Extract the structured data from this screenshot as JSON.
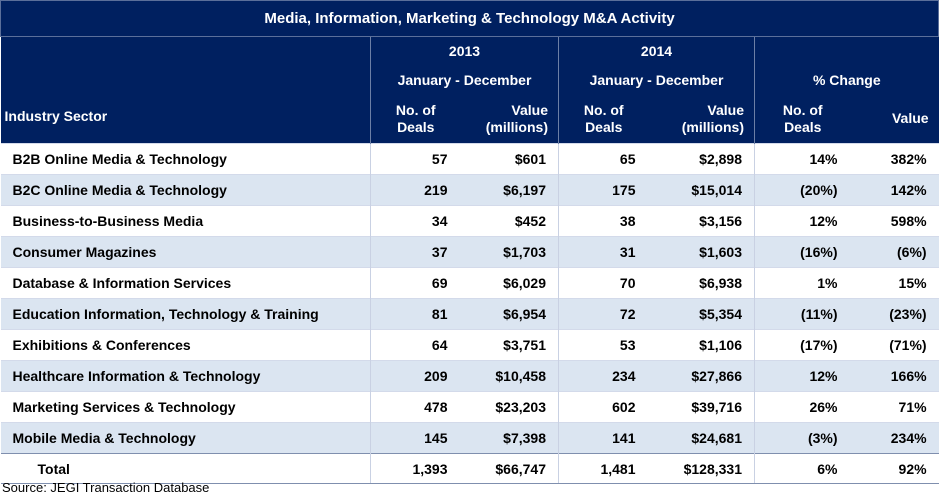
{
  "title": "Media, Information, Marketing & Technology M&A Activity",
  "header": {
    "year_2013": "2013",
    "year_2014": "2014",
    "period_2013": "January - December",
    "period_2014": "January - December",
    "pct_change": "% Change",
    "sector_label": "Industry Sector",
    "deals_l1": "No. of",
    "deals_l2": "Deals",
    "value_l1": "Value",
    "value_l2": "(millions)",
    "pct_value": "Value"
  },
  "rows": [
    {
      "sector": "B2B Online Media & Technology",
      "deals_2013": "57",
      "value_2013": "$601",
      "deals_2014": "65",
      "value_2014": "$2,898",
      "pct_deals": "14%",
      "pct_value": "382%"
    },
    {
      "sector": "B2C Online Media & Technology",
      "deals_2013": "219",
      "value_2013": "$6,197",
      "deals_2014": "175",
      "value_2014": "$15,014",
      "pct_deals": "(20%)",
      "pct_value": "142%"
    },
    {
      "sector": "Business-to-Business Media",
      "deals_2013": "34",
      "value_2013": "$452",
      "deals_2014": "38",
      "value_2014": "$3,156",
      "pct_deals": "12%",
      "pct_value": "598%"
    },
    {
      "sector": "Consumer Magazines",
      "deals_2013": "37",
      "value_2013": "$1,703",
      "deals_2014": "31",
      "value_2014": "$1,603",
      "pct_deals": "(16%)",
      "pct_value": "(6%)"
    },
    {
      "sector": "Database & Information Services",
      "deals_2013": "69",
      "value_2013": "$6,029",
      "deals_2014": "70",
      "value_2014": "$6,938",
      "pct_deals": "1%",
      "pct_value": "15%"
    },
    {
      "sector": "Education Information, Technology & Training",
      "deals_2013": "81",
      "value_2013": "$6,954",
      "deals_2014": "72",
      "value_2014": "$5,354",
      "pct_deals": "(11%)",
      "pct_value": "(23%)"
    },
    {
      "sector": "Exhibitions & Conferences",
      "deals_2013": "64",
      "value_2013": "$3,751",
      "deals_2014": "53",
      "value_2014": "$1,106",
      "pct_deals": "(17%)",
      "pct_value": "(71%)"
    },
    {
      "sector": "Healthcare Information & Technology",
      "deals_2013": "209",
      "value_2013": "$10,458",
      "deals_2014": "234",
      "value_2014": "$27,866",
      "pct_deals": "12%",
      "pct_value": "166%"
    },
    {
      "sector": "Marketing Services & Technology",
      "deals_2013": "478",
      "value_2013": "$23,203",
      "deals_2014": "602",
      "value_2014": "$39,716",
      "pct_deals": "26%",
      "pct_value": "71%"
    },
    {
      "sector": "Mobile Media & Technology",
      "deals_2013": "145",
      "value_2013": "$7,398",
      "deals_2014": "141",
      "value_2014": "$24,681",
      "pct_deals": "(3%)",
      "pct_value": "234%"
    }
  ],
  "total": {
    "label": "Total",
    "deals_2013": "1,393",
    "value_2013": "$66,747",
    "deals_2014": "1,481",
    "value_2014": "$128,331",
    "pct_deals": "6%",
    "pct_value": "92%"
  },
  "source": "Source: JEGI Transaction Database",
  "colors": {
    "header_bg": "#002060",
    "band": "#dbe5f1"
  }
}
